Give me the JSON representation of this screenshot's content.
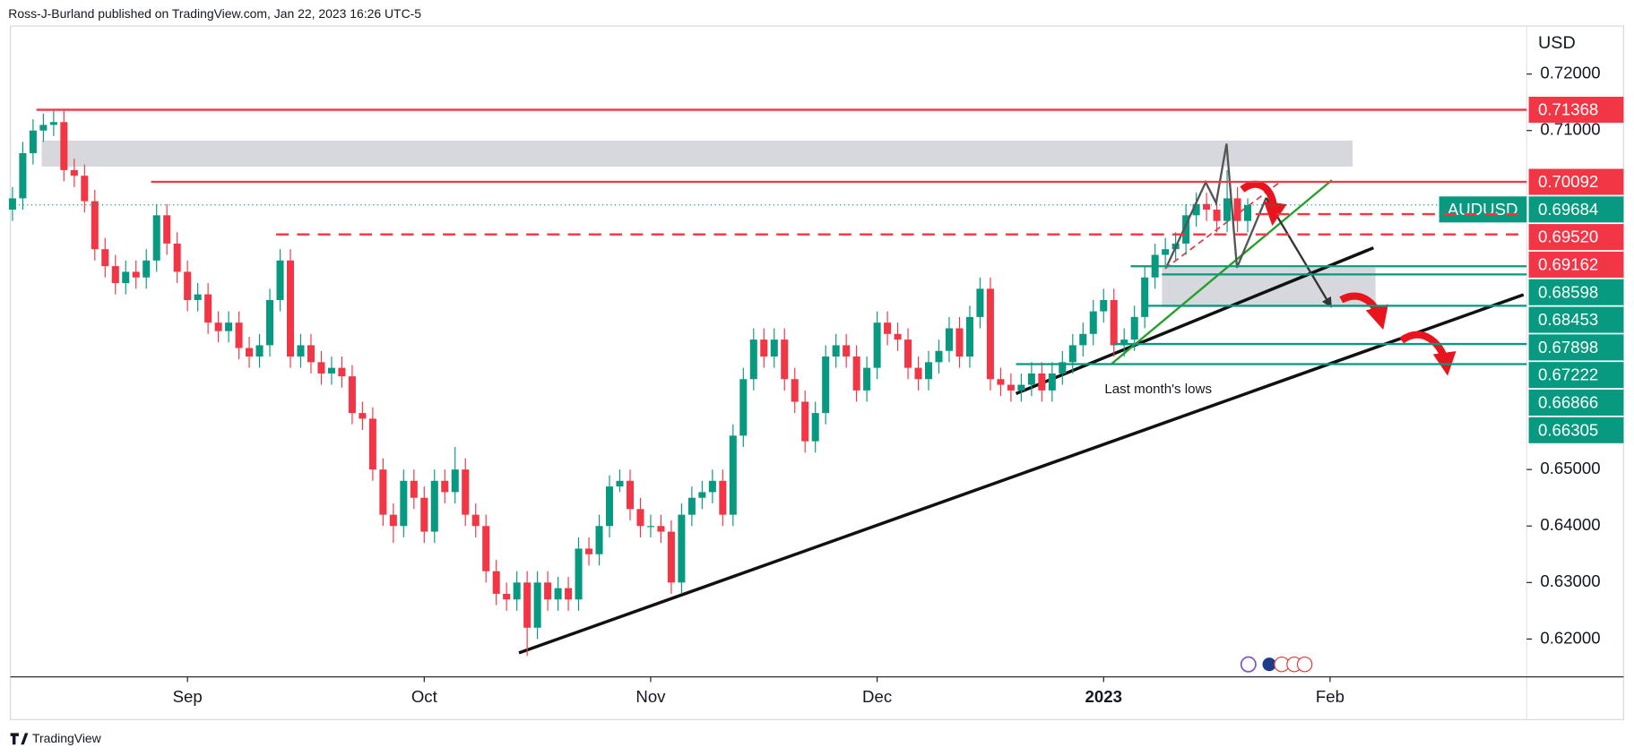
{
  "chart_data": {
    "type": "candlestick",
    "title": "Ross-J-Burland published on TradingView.com, Jan 22, 2023 16:26 UTC-5",
    "y_axis_label": "USD",
    "source": "TradingView",
    "annotation": "Last month's lows",
    "up_color": "#089981",
    "down_color": "#f23645",
    "grid": false,
    "xlim": [
      -0.2,
      147.1
    ],
    "xticks": [
      {
        "value": 17,
        "label": "Sep"
      },
      {
        "value": 40,
        "label": "Oct"
      },
      {
        "value": 62,
        "label": "Nov"
      },
      {
        "value": 84,
        "label": "Dec"
      },
      {
        "value": 106,
        "label": "2023"
      },
      {
        "value": 128,
        "label": "Feb"
      }
    ],
    "ylim": [
      0.6133,
      0.7285
    ],
    "yticks": [
      {
        "value": 0.72,
        "label": "0.72000"
      },
      {
        "value": 0.71,
        "label": "0.71000"
      },
      {
        "value": 0.65,
        "label": "0.65000"
      },
      {
        "value": 0.64,
        "label": "0.64000"
      },
      {
        "value": 0.63,
        "label": "0.63000"
      },
      {
        "value": 0.62,
        "label": "0.62000"
      }
    ],
    "levels": [
      {
        "value": 0.71368,
        "label": "0.71368",
        "color": "#f23645",
        "style": "solid"
      },
      {
        "value": 0.70092,
        "label": "0.70092",
        "color": "#f23645",
        "style": "solid"
      },
      {
        "value": 0.69684,
        "label": "0.69684",
        "name": "AUDUSD",
        "color": "#089981",
        "style": "dotted"
      },
      {
        "value": 0.6952,
        "label": "0.69520",
        "color": "#f23645",
        "style": "dashed"
      },
      {
        "value": 0.69162,
        "label": "0.69162",
        "color": "#f23645",
        "style": "dashed"
      },
      {
        "value": 0.68598,
        "label": "0.68598",
        "color": "#089981",
        "style": "solid"
      },
      {
        "value": 0.68453,
        "label": "0.68453",
        "color": "#089981",
        "style": "solid"
      },
      {
        "value": 0.67898,
        "label": "0.67898",
        "color": "#089981",
        "style": "solid"
      },
      {
        "value": 0.67222,
        "label": "0.67222",
        "color": "#089981",
        "style": "solid"
      },
      {
        "value": 0.66866,
        "label": "0.66866",
        "color": "#089981",
        "style": "solid"
      },
      {
        "value": 0.66305,
        "label": "0.66305",
        "color": "#089981",
        "style": "none"
      }
    ],
    "open": [
      0.696,
      0.698,
      0.706,
      0.71,
      0.711,
      0.7115,
      0.703,
      0.702,
      0.6975,
      0.689,
      0.686,
      0.683,
      0.685,
      0.684,
      0.687,
      0.695,
      0.69,
      0.685,
      0.68,
      0.681,
      0.676,
      0.6745,
      0.676,
      0.6715,
      0.67,
      0.672,
      0.68,
      0.687,
      0.67,
      0.672,
      0.669,
      0.667,
      0.668,
      0.6665,
      0.66,
      0.659,
      0.65,
      0.642,
      0.64,
      0.648,
      0.645,
      0.639,
      0.648,
      0.646,
      0.65,
      0.642,
      0.64,
      0.632,
      0.628,
      0.627,
      0.63,
      0.622,
      0.63,
      0.627,
      0.629,
      0.627,
      0.636,
      0.635,
      0.64,
      0.647,
      0.648,
      0.643,
      0.64,
      0.64,
      0.639,
      0.63,
      0.642,
      0.645,
      0.646,
      0.648,
      0.642,
      0.656,
      0.666,
      0.673,
      0.67,
      0.673,
      0.666,
      0.662,
      0.655,
      0.66,
      0.67,
      0.672,
      0.67,
      0.664,
      0.668,
      0.676,
      0.674,
      0.673,
      0.668,
      0.666,
      0.669,
      0.671,
      0.675,
      0.67,
      0.677,
      0.682,
      0.666,
      0.665,
      0.664,
      0.665,
      0.667,
      0.664,
      0.667,
      0.669,
      0.672,
      0.674,
      0.678,
      0.68,
      0.672,
      0.673,
      0.677,
      0.684,
      0.688,
      0.689,
      0.69,
      0.695,
      0.697,
      0.696,
      0.694,
      0.698,
      0.694
    ],
    "high": [
      0.7,
      0.708,
      0.712,
      0.713,
      0.7136,
      0.7135,
      0.705,
      0.704,
      0.6995,
      0.691,
      0.688,
      0.687,
      0.687,
      0.689,
      0.697,
      0.697,
      0.692,
      0.687,
      0.683,
      0.683,
      0.678,
      0.678,
      0.678,
      0.6735,
      0.674,
      0.682,
      0.689,
      0.689,
      0.674,
      0.674,
      0.671,
      0.67,
      0.67,
      0.6685,
      0.662,
      0.661,
      0.652,
      0.644,
      0.65,
      0.65,
      0.647,
      0.65,
      0.65,
      0.654,
      0.652,
      0.644,
      0.642,
      0.634,
      0.63,
      0.632,
      0.632,
      0.632,
      0.632,
      0.631,
      0.631,
      0.638,
      0.638,
      0.642,
      0.649,
      0.65,
      0.65,
      0.645,
      0.642,
      0.642,
      0.641,
      0.644,
      0.647,
      0.648,
      0.65,
      0.65,
      0.658,
      0.668,
      0.675,
      0.675,
      0.675,
      0.675,
      0.668,
      0.664,
      0.662,
      0.672,
      0.674,
      0.674,
      0.672,
      0.67,
      0.678,
      0.678,
      0.676,
      0.675,
      0.67,
      0.671,
      0.673,
      0.677,
      0.677,
      0.679,
      0.684,
      0.684,
      0.668,
      0.667,
      0.667,
      0.669,
      0.669,
      0.669,
      0.671,
      0.674,
      0.676,
      0.68,
      0.682,
      0.682,
      0.675,
      0.679,
      0.686,
      0.69,
      0.691,
      0.692,
      0.697,
      0.699,
      0.699,
      0.698,
      0.703,
      0.7,
      0.698
    ],
    "low": [
      0.694,
      0.696,
      0.704,
      0.708,
      0.709,
      0.701,
      0.7,
      0.6955,
      0.687,
      0.684,
      0.681,
      0.681,
      0.682,
      0.682,
      0.685,
      0.688,
      0.683,
      0.678,
      0.678,
      0.674,
      0.6725,
      0.6725,
      0.6695,
      0.668,
      0.668,
      0.67,
      0.678,
      0.668,
      0.668,
      0.667,
      0.665,
      0.665,
      0.6645,
      0.658,
      0.657,
      0.648,
      0.64,
      0.637,
      0.638,
      0.643,
      0.637,
      0.637,
      0.644,
      0.644,
      0.64,
      0.638,
      0.63,
      0.626,
      0.625,
      0.625,
      0.617,
      0.62,
      0.625,
      0.625,
      0.625,
      0.625,
      0.633,
      0.633,
      0.638,
      0.646,
      0.641,
      0.638,
      0.638,
      0.637,
      0.628,
      0.628,
      0.64,
      0.643,
      0.644,
      0.64,
      0.64,
      0.654,
      0.664,
      0.668,
      0.668,
      0.664,
      0.66,
      0.653,
      0.653,
      0.658,
      0.668,
      0.668,
      0.662,
      0.662,
      0.666,
      0.672,
      0.671,
      0.666,
      0.664,
      0.664,
      0.667,
      0.669,
      0.668,
      0.668,
      0.675,
      0.664,
      0.663,
      0.662,
      0.662,
      0.663,
      0.662,
      0.662,
      0.665,
      0.667,
      0.67,
      0.672,
      0.676,
      0.67,
      0.67,
      0.671,
      0.675,
      0.682,
      0.686,
      0.687,
      0.688,
      0.693,
      0.694,
      0.692,
      0.692,
      0.692,
      0.692
    ],
    "close": [
      0.698,
      0.706,
      0.71,
      0.711,
      0.7115,
      0.703,
      0.702,
      0.6975,
      0.689,
      0.686,
      0.683,
      0.685,
      0.684,
      0.687,
      0.695,
      0.69,
      0.685,
      0.68,
      0.681,
      0.676,
      0.6745,
      0.676,
      0.6715,
      0.67,
      0.672,
      0.68,
      0.687,
      0.67,
      0.672,
      0.669,
      0.667,
      0.668,
      0.6665,
      0.66,
      0.659,
      0.65,
      0.642,
      0.64,
      0.648,
      0.645,
      0.639,
      0.648,
      0.646,
      0.65,
      0.642,
      0.64,
      0.632,
      0.628,
      0.627,
      0.63,
      0.622,
      0.63,
      0.627,
      0.629,
      0.627,
      0.636,
      0.635,
      0.64,
      0.647,
      0.648,
      0.643,
      0.64,
      0.64,
      0.639,
      0.63,
      0.642,
      0.645,
      0.646,
      0.648,
      0.642,
      0.656,
      0.666,
      0.673,
      0.67,
      0.673,
      0.666,
      0.662,
      0.655,
      0.66,
      0.67,
      0.672,
      0.67,
      0.664,
      0.668,
      0.676,
      0.674,
      0.673,
      0.668,
      0.666,
      0.669,
      0.671,
      0.675,
      0.67,
      0.677,
      0.682,
      0.666,
      0.665,
      0.664,
      0.665,
      0.667,
      0.664,
      0.667,
      0.669,
      0.672,
      0.674,
      0.678,
      0.68,
      0.672,
      0.673,
      0.677,
      0.684,
      0.688,
      0.689,
      0.69,
      0.695,
      0.697,
      0.696,
      0.694,
      0.698,
      0.694,
      0.6968
    ]
  }
}
